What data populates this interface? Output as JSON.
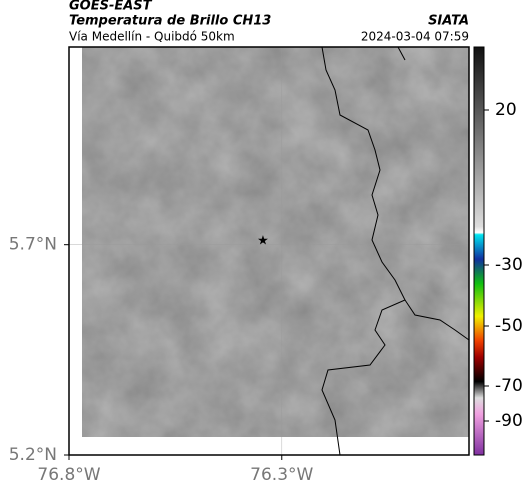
{
  "header": {
    "source": "GOES-EAST",
    "title": "Temperatura de Brillo CH13",
    "org": "SIATA",
    "subtitle": "Vía Medellín - Quibdó 50km",
    "timestamp": "2024-03-04 07:59"
  },
  "map": {
    "xlim": [
      -76.8,
      -75.86
    ],
    "ylim": [
      5.2,
      6.17
    ],
    "xticks": [
      {
        "value": -76.8,
        "label": "76.8°W"
      },
      {
        "value": -76.3,
        "label": "76.3°W"
      }
    ],
    "yticks": [
      {
        "value": 5.7,
        "label": "5.7°N"
      },
      {
        "value": 5.2,
        "label": "5.2°N"
      }
    ],
    "colorbar_ticks": [
      20,
      -30,
      -50,
      -70,
      -90
    ]
  }
}
